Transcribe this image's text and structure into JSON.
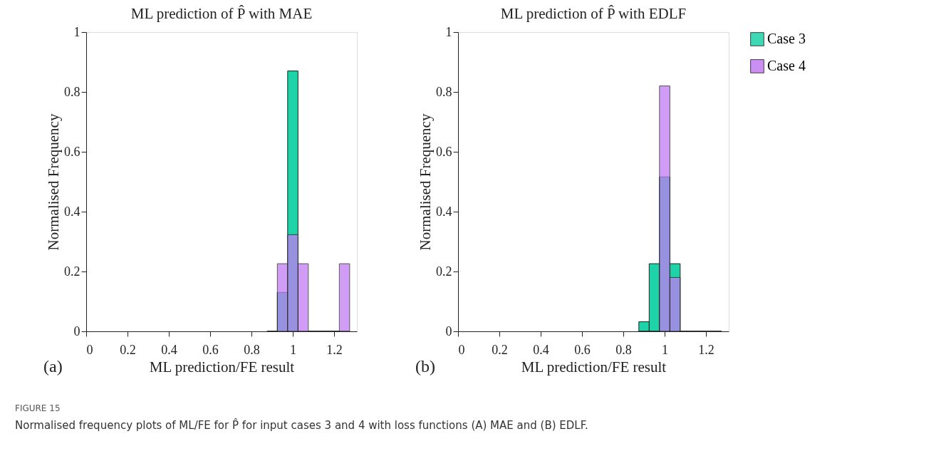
{
  "chart_data": [
    {
      "type": "histogram",
      "title": "ML prediction of P̂ with MAE",
      "xlabel": "ML prediction/FE result",
      "ylabel": "Normalised Frequency",
      "xlim": [
        0,
        1.31
      ],
      "xticks": [
        0,
        0.2,
        0.4,
        0.6,
        0.8,
        1,
        1.2
      ],
      "ylim": [
        0,
        1
      ],
      "yticks": [
        0,
        0.2,
        0.4,
        0.6,
        0.8,
        1
      ],
      "grid": false,
      "legend": false,
      "bins": [
        0.875,
        0.925,
        0.975,
        1.025,
        1.075,
        1.125,
        1.175,
        1.225,
        1.275
      ],
      "series": [
        {
          "color": "#1dd3a7",
          "values": [
            0,
            0.13,
            0.87,
            0,
            0,
            0,
            0,
            0
          ]
        },
        {
          "color": "#c27cf2",
          "values": [
            0,
            0.226,
            0.323,
            0.226,
            0,
            0,
            0,
            0.226
          ]
        }
      ],
      "annotations": [
        "(a)",
        "FIGURE 15",
        "Normalised frequency plots of ML/FE for P̂ for input cases 3 and 4 with loss functions (A) MAE and (B) EDLF."
      ]
    },
    {
      "type": "histogram",
      "title": "ML prediction of P̂ with EDLF",
      "xlabel": "ML prediction/FE result",
      "ylabel": "Normalised Frequency",
      "xlim": [
        0,
        1.31
      ],
      "xticks": [
        0,
        0.2,
        0.4,
        0.6,
        0.8,
        1,
        1.2
      ],
      "ylim": [
        0,
        1
      ],
      "yticks": [
        0,
        0.2,
        0.4,
        0.6,
        0.8,
        1
      ],
      "grid": false,
      "legend": "top right",
      "bins": [
        0.875,
        0.925,
        0.975,
        1.025,
        1.075,
        1.125,
        1.175,
        1.225,
        1.275
      ],
      "series": [
        {
          "name": "Case 3",
          "color": "#1dd3a7",
          "values": [
            0.032,
            0.226,
            0.516,
            0.226,
            0,
            0,
            0,
            0
          ]
        },
        {
          "name": "Case 4",
          "color": "#c27cf2",
          "values": [
            0,
            0,
            0.82,
            0.18,
            0,
            0,
            0,
            0
          ]
        }
      ],
      "annotations": [
        "(b)"
      ]
    }
  ]
}
